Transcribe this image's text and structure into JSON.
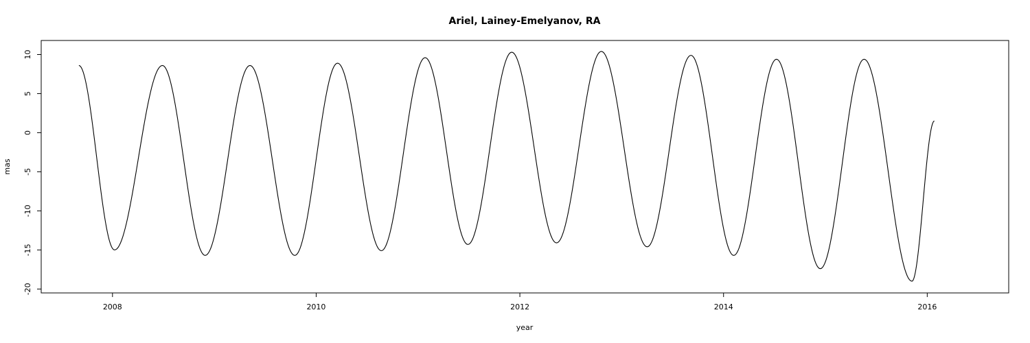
{
  "chart_data": {
    "type": "line",
    "title": "Ariel, Lainey-Emelyanov, RA",
    "xlabel": "year",
    "ylabel": "mas",
    "xlim": [
      2007.3,
      2016.8
    ],
    "ylim": [
      -20.5,
      11.8
    ],
    "x_ticks": [
      2008,
      2010,
      2012,
      2014,
      2016
    ],
    "x_tick_labels": [
      "2008",
      "2010",
      "2012",
      "2014",
      "2016"
    ],
    "y_ticks": [
      10,
      5,
      0,
      -5,
      -10,
      -15,
      -20
    ],
    "y_tick_labels": [
      "10",
      "5",
      "0",
      "-5",
      "-10",
      "-15",
      "-20"
    ],
    "grid": false,
    "legend": "none",
    "line_color": "#000000",
    "series": [
      {
        "x": [
          2007.67,
          2008.02,
          2008.49,
          2008.91,
          2009.35,
          2009.79,
          2010.21,
          2010.64,
          2011.07,
          2011.49,
          2011.92,
          2012.36,
          2012.8,
          2013.25,
          2013.68,
          2014.1,
          2014.52,
          2014.95,
          2015.38,
          2015.85,
          2016.07
        ],
        "values": [
          8.6,
          -15.0,
          8.6,
          -15.7,
          8.6,
          -15.7,
          8.9,
          -15.1,
          9.6,
          -14.3,
          10.3,
          -14.1,
          10.4,
          -14.6,
          9.9,
          -15.7,
          9.4,
          -17.4,
          9.4,
          -19.0,
          1.5
        ]
      }
    ]
  }
}
